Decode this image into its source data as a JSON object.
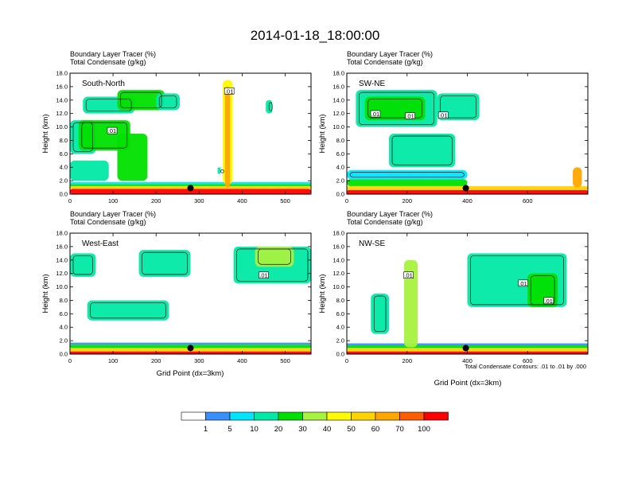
{
  "figure_title": "2014-01-18_18:00:00",
  "header_line1": "Boundary Layer Tracer   (%)",
  "header_line2": "Total Condensate   (g/kg)",
  "contour_note": "Total Condensate Contours: .01 to .01 by .000",
  "colorbar": {
    "colors": [
      "#ffffff",
      "#3a8ffe",
      "#00e5ff",
      "#00e9a5",
      "#00e000",
      "#a6f23f",
      "#fffa00",
      "#ffd400",
      "#ffa500",
      "#ff5d00",
      "#ff0000"
    ],
    "labels": [
      "1",
      "5",
      "10",
      "20",
      "30",
      "40",
      "50",
      "60",
      "70",
      "100"
    ]
  },
  "chart_data": [
    {
      "type": "heatmap",
      "panel": "South-North",
      "title": "Boundary Layer Tracer (%) / Total Condensate (g/kg)",
      "xlabel": "",
      "ylabel": "Height (km)",
      "xlim": [
        0,
        560
      ],
      "ylim": [
        0,
        18
      ],
      "xticks": [
        "0",
        "100",
        "200",
        "300",
        "400",
        "500"
      ],
      "xtick_values": [
        0,
        100,
        200,
        300,
        400,
        500
      ],
      "yticks": [
        "0.0",
        "2.0",
        "4.0",
        "6.0",
        "8.0",
        "10.0",
        "12.0",
        "14.0",
        "16.0",
        "18.0"
      ],
      "marker_x": 280,
      "contour_labels": [
        {
          "text": ".01",
          "x": 370,
          "y": 15.3
        },
        {
          "text": ".01",
          "x": 98,
          "y": 9.4
        }
      ],
      "regions": [
        {
          "x": [
            0,
            560
          ],
          "y": [
            0,
            0.8
          ],
          "level": 10
        },
        {
          "x": [
            0,
            560
          ],
          "y": [
            0.8,
            1.2
          ],
          "level": 7
        },
        {
          "x": [
            0,
            560
          ],
          "y": [
            1.2,
            1.5
          ],
          "level": 4
        },
        {
          "x": [
            0,
            560
          ],
          "y": [
            1.5,
            1.8
          ],
          "level": 2
        },
        {
          "x": [
            0,
            90
          ],
          "y": [
            2,
            5
          ],
          "level": 3
        },
        {
          "x": [
            0,
            60
          ],
          "y": [
            6,
            11
          ],
          "level": 3
        },
        {
          "x": [
            20,
            140
          ],
          "y": [
            6.5,
            11
          ],
          "level": 4
        },
        {
          "x": [
            30,
            150
          ],
          "y": [
            12,
            14.5
          ],
          "level": 3
        },
        {
          "x": [
            110,
            220
          ],
          "y": [
            12.5,
            15.5
          ],
          "level": 4
        },
        {
          "x": [
            200,
            255
          ],
          "y": [
            12.5,
            15
          ],
          "level": 3
        },
        {
          "x": [
            110,
            180
          ],
          "y": [
            2,
            9
          ],
          "level": 4
        },
        {
          "x": [
            355,
            378
          ],
          "y": [
            1.5,
            17
          ],
          "level": 6
        },
        {
          "x": [
            360,
            372
          ],
          "y": [
            1,
            16
          ],
          "level": 8
        },
        {
          "x": [
            343,
            350
          ],
          "y": [
            3,
            4
          ],
          "level": 3
        },
        {
          "x": [
            455,
            470
          ],
          "y": [
            12,
            14
          ],
          "level": 3
        }
      ]
    },
    {
      "type": "heatmap",
      "panel": "SW-NE",
      "title": "Boundary Layer Tracer (%) / Total Condensate (g/kg)",
      "xlabel": "",
      "ylabel": "Height (km)",
      "xlim": [
        0,
        800
      ],
      "ylim": [
        0,
        18
      ],
      "xticks": [
        "0",
        "200",
        "400",
        "600"
      ],
      "xtick_values": [
        0,
        200,
        400,
        600
      ],
      "yticks": [
        "0.0",
        "2.0",
        "4.0",
        "6.0",
        "8.0",
        "10.0",
        "12.0",
        "14.0",
        "16.0",
        "18.0"
      ],
      "marker_x": 395,
      "contour_labels": [
        {
          "text": ".01",
          "x": 95,
          "y": 11.9
        },
        {
          "text": ".01",
          "x": 210,
          "y": 11.6
        },
        {
          "text": ".01",
          "x": 320,
          "y": 11.7
        }
      ],
      "regions": [
        {
          "x": [
            0,
            800
          ],
          "y": [
            0,
            0.6
          ],
          "level": 10
        },
        {
          "x": [
            0,
            800
          ],
          "y": [
            0.6,
            1.2
          ],
          "level": 7
        },
        {
          "x": [
            0,
            400
          ],
          "y": [
            1.2,
            2.2
          ],
          "level": 4
        },
        {
          "x": [
            0,
            400
          ],
          "y": [
            2.2,
            3.6
          ],
          "level": 2
        },
        {
          "x": [
            30,
            300
          ],
          "y": [
            10,
            15.5
          ],
          "level": 3
        },
        {
          "x": [
            60,
            260
          ],
          "y": [
            11,
            14.5
          ],
          "level": 4
        },
        {
          "x": [
            300,
            440
          ],
          "y": [
            11,
            15
          ],
          "level": 3
        },
        {
          "x": [
            140,
            360
          ],
          "y": [
            4,
            9
          ],
          "level": 3
        },
        {
          "x": [
            750,
            780
          ],
          "y": [
            1,
            4
          ],
          "level": 8
        }
      ]
    },
    {
      "type": "heatmap",
      "panel": "West-East",
      "title": "Boundary Layer Tracer (%) / Total Condensate (g/kg)",
      "xlabel": "Grid Point (dx=3km)",
      "ylabel": "Height (km)",
      "xlim": [
        0,
        560
      ],
      "ylim": [
        0,
        18
      ],
      "xticks": [
        "0",
        "100",
        "200",
        "300",
        "400",
        "500"
      ],
      "xtick_values": [
        0,
        100,
        200,
        300,
        400,
        500
      ],
      "yticks": [
        "0.0",
        "2.0",
        "4.0",
        "6.0",
        "8.0",
        "10.0",
        "12.0",
        "14.0",
        "16.0",
        "18.0"
      ],
      "marker_x": 280,
      "contour_labels": [
        {
          "text": ".01",
          "x": 450,
          "y": 11.7
        }
      ],
      "regions": [
        {
          "x": [
            0,
            560
          ],
          "y": [
            0,
            0.4
          ],
          "level": 10
        },
        {
          "x": [
            0,
            560
          ],
          "y": [
            0.4,
            0.9
          ],
          "level": 7
        },
        {
          "x": [
            0,
            560
          ],
          "y": [
            0.9,
            1.4
          ],
          "level": 4
        },
        {
          "x": [
            0,
            560
          ],
          "y": [
            1.4,
            1.7
          ],
          "level": 1
        },
        {
          "x": [
            0,
            60
          ],
          "y": [
            11.5,
            15
          ],
          "level": 3
        },
        {
          "x": [
            160,
            280
          ],
          "y": [
            11.5,
            15.5
          ],
          "level": 3
        },
        {
          "x": [
            40,
            230
          ],
          "y": [
            5,
            8
          ],
          "level": 3
        },
        {
          "x": [
            380,
            560
          ],
          "y": [
            10.5,
            16
          ],
          "level": 3
        },
        {
          "x": [
            430,
            520
          ],
          "y": [
            13,
            16
          ],
          "level": 5
        }
      ]
    },
    {
      "type": "heatmap",
      "panel": "NW-SE",
      "title": "Boundary Layer Tracer (%) / Total Condensate (g/kg)",
      "xlabel": "Grid Point (dx=3km)",
      "ylabel": "Height (km)",
      "xlim": [
        0,
        800
      ],
      "ylim": [
        0,
        18
      ],
      "xticks": [
        "0",
        "200",
        "400",
        "600"
      ],
      "xtick_values": [
        0,
        200,
        400,
        600
      ],
      "yticks": [
        "0.0",
        "2.0",
        "4.0",
        "6.0",
        "8.0",
        "10.0",
        "12.0",
        "14.0",
        "16.0",
        "18.0"
      ],
      "marker_x": 395,
      "contour_labels": [
        {
          "text": ".01",
          "x": 205,
          "y": 11.7
        },
        {
          "text": ".01",
          "x": 585,
          "y": 10.5
        },
        {
          "text": ".01",
          "x": 670,
          "y": 7.9
        }
      ],
      "regions": [
        {
          "x": [
            0,
            800
          ],
          "y": [
            0,
            0.4
          ],
          "level": 10
        },
        {
          "x": [
            0,
            800
          ],
          "y": [
            0.4,
            0.9
          ],
          "level": 7
        },
        {
          "x": [
            0,
            800
          ],
          "y": [
            0.9,
            1.3
          ],
          "level": 4
        },
        {
          "x": [
            0,
            800
          ],
          "y": [
            1.3,
            1.6
          ],
          "level": 1
        },
        {
          "x": [
            190,
            235
          ],
          "y": [
            1,
            14
          ],
          "level": 5
        },
        {
          "x": [
            80,
            140
          ],
          "y": [
            3,
            9
          ],
          "level": 3
        },
        {
          "x": [
            400,
            730
          ],
          "y": [
            7,
            15
          ],
          "level": 3
        },
        {
          "x": [
            600,
            700
          ],
          "y": [
            7,
            12
          ],
          "level": 4
        }
      ]
    }
  ]
}
